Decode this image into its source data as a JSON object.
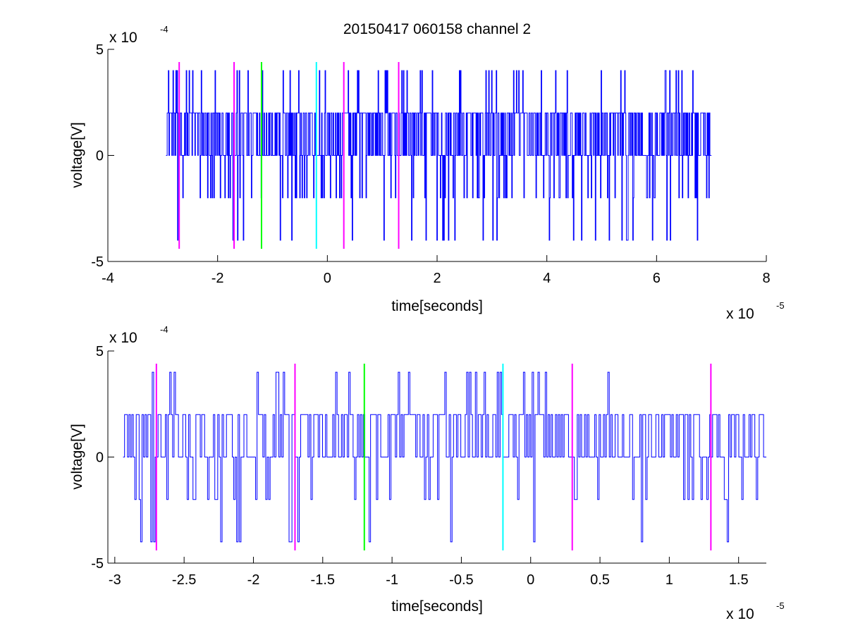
{
  "figure": {
    "title": "20150417 060158 channel 2",
    "colors": {
      "signal": "#0000ff",
      "magenta": "#ff00ff",
      "green": "#00ff00",
      "cyan": "#00ffff",
      "axes": "#000000"
    }
  },
  "chart_data": [
    {
      "type": "line",
      "xlabel": "time[seconds]",
      "ylabel": "voltage[V]",
      "x_multiplier": {
        "base": "x 10",
        "exponent": "-5"
      },
      "y_multiplier": {
        "base": "x 10",
        "exponent": "-4"
      },
      "xlim": [
        -4,
        8
      ],
      "ylim": [
        -5,
        5
      ],
      "xticks": [
        -4,
        -2,
        0,
        2,
        4,
        6,
        8
      ],
      "xtick_labels": [
        "-4",
        "-2",
        "0",
        "2",
        "4",
        "6",
        "8"
      ],
      "yticks": [
        -5,
        0,
        5
      ],
      "ytick_labels": [
        "-5",
        "0",
        "5"
      ],
      "signal": {
        "x_start": -2.94,
        "x_end": 7.0,
        "levels": [
          -4,
          -2,
          0,
          2,
          4
        ],
        "dominant_levels": [
          0,
          2
        ]
      },
      "markers": [
        {
          "x": -2.7,
          "color": "magenta",
          "y_range": [
            -4.4,
            4.4
          ]
        },
        {
          "x": -1.7,
          "color": "magenta",
          "y_range": [
            -4.4,
            4.4
          ]
        },
        {
          "x": -1.2,
          "color": "green",
          "y_range": [
            -4.4,
            4.4
          ]
        },
        {
          "x": -0.2,
          "color": "cyan",
          "y_range": [
            -4.4,
            4.4
          ]
        },
        {
          "x": 0.3,
          "color": "magenta",
          "y_range": [
            -4.4,
            4.4
          ]
        },
        {
          "x": 1.3,
          "color": "magenta",
          "y_range": [
            -4.4,
            4.4
          ]
        }
      ]
    },
    {
      "type": "line",
      "xlabel": "time[seconds]",
      "ylabel": "voltage[V]",
      "x_multiplier": {
        "base": "x 10",
        "exponent": "-5"
      },
      "y_multiplier": {
        "base": "x 10",
        "exponent": "-4"
      },
      "xlim": [
        -3.05,
        1.7
      ],
      "ylim": [
        -5,
        5
      ],
      "xticks": [
        -3,
        -2.5,
        -2,
        -1.5,
        -1,
        -0.5,
        0,
        0.5,
        1,
        1.5
      ],
      "xtick_labels": [
        "-3",
        "-2.5",
        "-2",
        "-1.5",
        "-1",
        "-0.5",
        "0",
        "0.5",
        "1",
        "1.5"
      ],
      "yticks": [
        -5,
        0,
        5
      ],
      "ytick_labels": [
        "-5",
        "0",
        "5"
      ],
      "signal": {
        "x_start": -2.94,
        "x_end": 1.7,
        "levels": [
          -4,
          -2,
          0,
          2,
          4
        ],
        "dominant_levels": [
          0,
          2
        ]
      },
      "markers": [
        {
          "x": -2.7,
          "color": "magenta",
          "y_range": [
            -4.4,
            4.4
          ]
        },
        {
          "x": -1.7,
          "color": "magenta",
          "y_range": [
            -4.4,
            4.4
          ]
        },
        {
          "x": -1.2,
          "color": "green",
          "y_range": [
            -4.4,
            4.4
          ]
        },
        {
          "x": -0.2,
          "color": "cyan",
          "y_range": [
            -4.4,
            4.4
          ]
        },
        {
          "x": 0.3,
          "color": "magenta",
          "y_range": [
            -4.4,
            4.4
          ]
        },
        {
          "x": 1.3,
          "color": "magenta",
          "y_range": [
            -4.4,
            4.4
          ]
        }
      ]
    }
  ]
}
